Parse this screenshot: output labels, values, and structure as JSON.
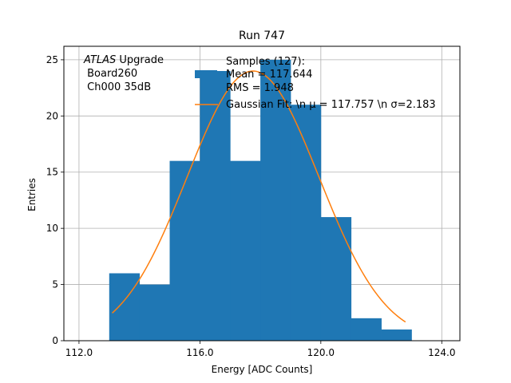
{
  "chart_data": {
    "type": "bar",
    "title": "Run 747",
    "xlabel": "Energy [ADC Counts]",
    "ylabel": "Entries",
    "xlim": [
      111.5,
      124.6
    ],
    "ylim": [
      0,
      26.2
    ],
    "grid": true,
    "xticks": [
      112.0,
      116.0,
      120.0,
      124.0
    ],
    "xtick_labels": [
      "112.0",
      "116.0",
      "120.0",
      "124.0"
    ],
    "yticks": [
      0,
      5,
      10,
      15,
      20,
      25
    ],
    "ytick_labels": [
      "0",
      "5",
      "10",
      "15",
      "20",
      "25"
    ],
    "histogram": {
      "name": "Samples (127):\nMean = 117.644\nRMS = 1.948",
      "color": "#1f77b4",
      "bin_edges": [
        113.0,
        114.0,
        115.0,
        116.0,
        117.0,
        118.0,
        119.0,
        120.0,
        121.0,
        122.0,
        123.0
      ],
      "counts": [
        6,
        5,
        16,
        24,
        16,
        25,
        21,
        11,
        2,
        1
      ]
    },
    "fit": {
      "name": "Gaussian Fit: \\n $\\mu$ = 117.757 \\n $\\sigma$=2.183",
      "display_name": "Gaussian Fit: \\n μ = 117.757 \\n σ=2.183",
      "color": "#ff7f0e",
      "x_range": [
        113.1,
        122.8
      ],
      "mu": 117.757,
      "sigma": 2.183,
      "amplitude": 24.0
    },
    "legend_placement": "top-right",
    "annotation": {
      "line1_italic": "ATLAS",
      "line1_rest": " Upgrade",
      "line2": " Board260",
      "line3": " Ch000 35dB"
    }
  }
}
